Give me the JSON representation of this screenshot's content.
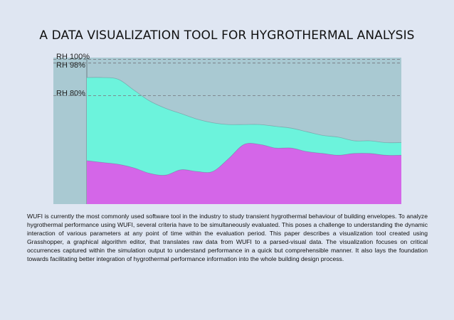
{
  "title": "A DATA VISUALIZATION TOOL FOR HYGROTHERMAL ANALYSIS",
  "chart_data": {
    "type": "area",
    "reference_lines": [
      {
        "label": "RH 100%",
        "value": 100
      },
      {
        "label": "RH 98%",
        "value": 98
      },
      {
        "label": "RH 80%",
        "value": 80
      }
    ],
    "x": [
      0,
      5,
      10,
      15,
      20,
      25,
      30,
      35,
      40,
      45,
      50,
      55,
      60,
      65,
      70,
      75,
      80,
      85,
      90,
      95,
      100
    ],
    "series": [
      {
        "values": [
          44,
          43,
          42,
          40,
          37,
          36,
          39,
          38,
          38,
          45,
          53,
          53,
          51,
          51,
          49,
          48,
          47,
          48,
          48,
          47,
          47
        ],
        "color": "#d466e8"
      },
      {
        "values": [
          90,
          90,
          89,
          83,
          77,
          73,
          70,
          67,
          65,
          64,
          64,
          64,
          63,
          62,
          60,
          58,
          57,
          55,
          55,
          54,
          54
        ],
        "color": "#6cf3dc"
      }
    ],
    "ylim": [
      20,
      101
    ],
    "colors": {
      "plot_bg": "#a9c9d2",
      "axis_band": "#a9c9d2"
    }
  },
  "abstract": "WUFI is currently the most commonly used software tool in the industry to study transient hygrothermal behaviour of building envelopes. To analyze hygrothermal performance using WUFI, several criteria have to be simultaneously evaluated. This poses a challenge to understanding the dynamic interaction of various parameters at any point of time within the evaluation period. This paper describes a visualization tool created using Grasshopper, a graphical algorithm editor, that translates raw data from WUFI to a parsed-visual data. The visualization focuses on critical occurrences captured within the simulation output to understand performance in a quick but comprehensible manner. It also lays the foundation towards facilitating better integration of hygrothermal performance information into the whole building design process."
}
